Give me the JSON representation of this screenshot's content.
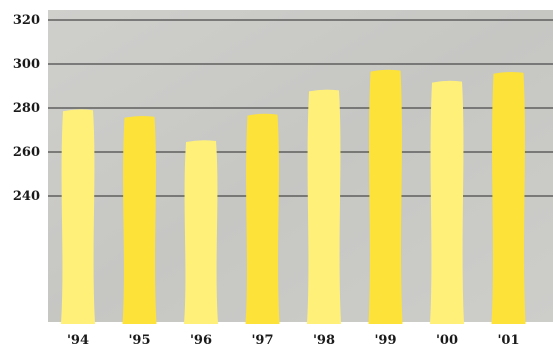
{
  "chart_data": {
    "type": "bar",
    "title": "",
    "xlabel": "",
    "ylabel": "",
    "categories": [
      "'94",
      "'95",
      "'96",
      "'97",
      "'98",
      "'99",
      "'00",
      "'01"
    ],
    "values": [
      279,
      276,
      265,
      277,
      288,
      297,
      292,
      296
    ],
    "y_ticks": [
      "320",
      "300",
      "280",
      "260",
      "240"
    ],
    "y_tick_values": [
      320,
      300,
      280,
      260,
      240
    ],
    "ylim": [
      185,
      325
    ],
    "grid": true,
    "legend": "none",
    "colors": {
      "background": "#c9c9c6",
      "bar_light": "#fff07a",
      "bar_dark": "#fde23a",
      "grid": "#4a4a4a"
    }
  }
}
